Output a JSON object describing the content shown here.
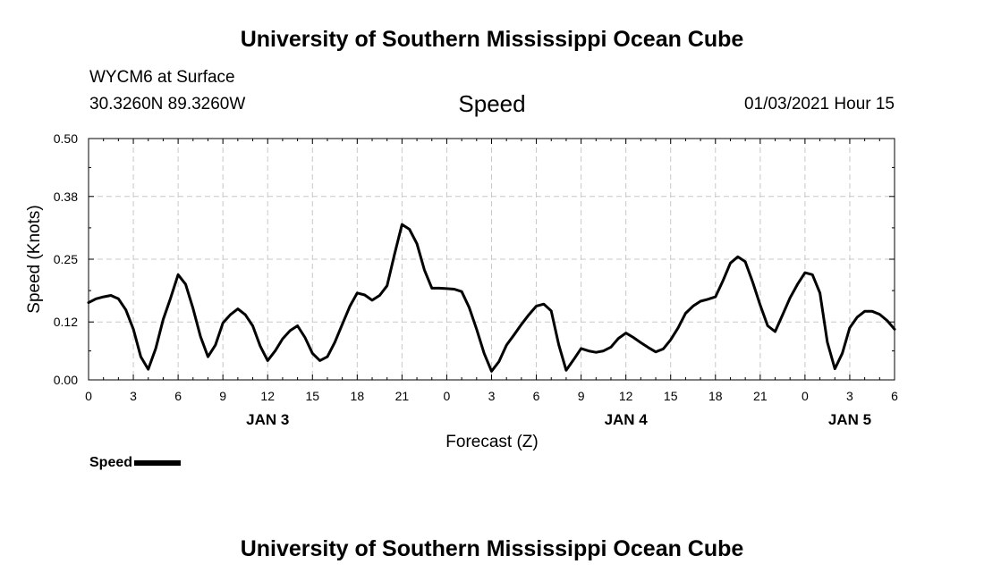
{
  "header": {
    "title": "University of Southern Mississippi Ocean Cube",
    "station": "WYCM6 at Surface",
    "coords": "30.3260N 89.3260W",
    "parameter": "Speed",
    "datetime": "01/03/2021 Hour 15"
  },
  "footer": {
    "title": "University of Southern Mississippi Ocean Cube"
  },
  "legend": {
    "label": "Speed"
  },
  "chart_data": {
    "type": "line",
    "title": "Speed",
    "xlabel": "Forecast (Z)",
    "ylabel": "Speed (Knots)",
    "xlim": [
      0,
      54
    ],
    "ylim": [
      0,
      0.5
    ],
    "y_ticks": [
      0.0,
      0.12,
      0.25,
      0.38,
      0.5
    ],
    "y_tick_labels": [
      "0.00",
      "0.12",
      "0.25",
      "0.38",
      "0.50"
    ],
    "x_ticks": [
      0,
      3,
      6,
      9,
      12,
      15,
      18,
      21,
      24,
      27,
      30,
      33,
      36,
      39,
      42,
      45,
      48,
      51,
      54
    ],
    "x_tick_labels": [
      "0",
      "3",
      "6",
      "9",
      "12",
      "15",
      "18",
      "21",
      "0",
      "3",
      "6",
      "9",
      "12",
      "15",
      "18",
      "21",
      "0",
      "3",
      "6"
    ],
    "day_labels": [
      {
        "x": 12,
        "label": "JAN 3"
      },
      {
        "x": 36,
        "label": "JAN 4"
      },
      {
        "x": 51,
        "label": "JAN 5"
      }
    ],
    "grid": true,
    "line_color": "#000000",
    "series": [
      {
        "name": "Speed",
        "x": [
          0,
          0.5,
          1,
          1.5,
          2,
          2.5,
          3,
          3.5,
          4,
          4.5,
          5,
          5.5,
          6,
          6.5,
          7,
          7.5,
          8,
          8.5,
          9,
          9.5,
          10,
          10.5,
          11,
          11.5,
          12,
          12.5,
          13,
          13.5,
          14,
          14.5,
          15,
          15.5,
          16,
          16.5,
          17,
          17.5,
          18,
          18.5,
          19,
          19.5,
          20,
          20.5,
          21,
          21.5,
          22,
          22.5,
          23,
          23.5,
          24,
          24.5,
          25,
          25.5,
          26,
          26.5,
          27,
          27.5,
          28,
          28.5,
          29,
          29.5,
          30,
          30.5,
          31,
          31.5,
          32,
          32.5,
          33,
          33.5,
          34,
          34.5,
          35,
          35.5,
          36,
          36.5,
          37,
          37.5,
          38,
          38.5,
          39,
          39.5,
          40,
          40.5,
          41,
          41.5,
          42,
          42.5,
          43,
          43.5,
          44,
          44.5,
          45,
          45.5,
          46,
          46.5,
          47,
          47.5,
          48,
          48.5,
          49,
          49.5,
          50,
          50.5,
          51,
          51.5,
          52,
          52.5,
          53,
          53.5,
          54
        ],
        "values": [
          0.16,
          0.168,
          0.172,
          0.175,
          0.168,
          0.145,
          0.105,
          0.048,
          0.022,
          0.065,
          0.125,
          0.17,
          0.218,
          0.198,
          0.148,
          0.09,
          0.048,
          0.072,
          0.118,
          0.135,
          0.147,
          0.135,
          0.112,
          0.07,
          0.04,
          0.06,
          0.085,
          0.102,
          0.112,
          0.088,
          0.055,
          0.04,
          0.048,
          0.078,
          0.115,
          0.152,
          0.18,
          0.176,
          0.165,
          0.175,
          0.195,
          0.26,
          0.322,
          0.312,
          0.282,
          0.228,
          0.19,
          0.19,
          0.189,
          0.188,
          0.183,
          0.15,
          0.105,
          0.055,
          0.018,
          0.038,
          0.072,
          0.093,
          0.115,
          0.135,
          0.153,
          0.157,
          0.143,
          0.073,
          0.02,
          0.042,
          0.065,
          0.06,
          0.057,
          0.06,
          0.068,
          0.086,
          0.097,
          0.088,
          0.077,
          0.067,
          0.058,
          0.064,
          0.083,
          0.108,
          0.138,
          0.153,
          0.163,
          0.167,
          0.172,
          0.205,
          0.242,
          0.255,
          0.245,
          0.202,
          0.155,
          0.112,
          0.1,
          0.135,
          0.17,
          0.198,
          0.222,
          0.218,
          0.18,
          0.078,
          0.023,
          0.055,
          0.108,
          0.13,
          0.142,
          0.142,
          0.136,
          0.123,
          0.105
        ]
      }
    ]
  }
}
